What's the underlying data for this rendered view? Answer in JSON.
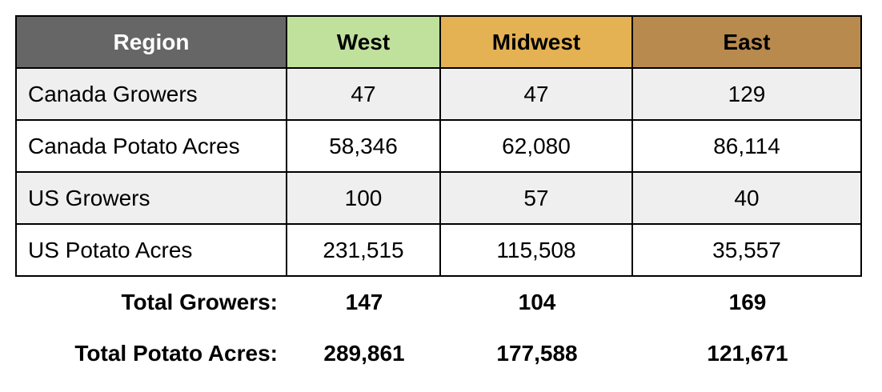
{
  "chart_data": {
    "type": "table",
    "columns": [
      {
        "label": "Region",
        "color": "#666666"
      },
      {
        "label": "West",
        "color": "#c0e19c"
      },
      {
        "label": "Midwest",
        "color": "#e4b253"
      },
      {
        "label": "East",
        "color": "#b98a4e"
      }
    ],
    "rows": [
      {
        "label": "Canada Growers",
        "values": [
          "47",
          "47",
          "129"
        ]
      },
      {
        "label": "Canada Potato Acres",
        "values": [
          "58,346",
          "62,080",
          "86,114"
        ]
      },
      {
        "label": "US Growers",
        "values": [
          "100",
          "57",
          "40"
        ]
      },
      {
        "label": "US Potato Acres",
        "values": [
          "231,515",
          "115,508",
          "35,557"
        ]
      }
    ],
    "totals": [
      {
        "label": "Total Growers:",
        "values": [
          "147",
          "104",
          "169"
        ]
      },
      {
        "label": "Total Potato Acres:",
        "values": [
          "289,861",
          "177,588",
          "121,671"
        ]
      }
    ]
  }
}
